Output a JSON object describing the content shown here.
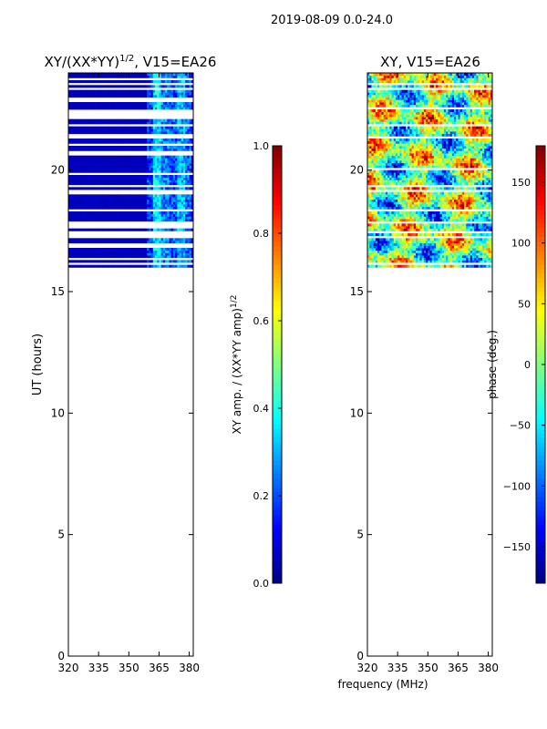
{
  "figure": {
    "suptitle": "2019-08-09 0.0-24.0",
    "shared_xlabel": "frequency (MHz)"
  },
  "colors": {
    "jet": [
      "#00007f",
      "#0000ff",
      "#007fff",
      "#00ffff",
      "#7fff7f",
      "#ffff00",
      "#ff7f00",
      "#ff0000",
      "#7f0000"
    ],
    "white": "#ffffff",
    "axis": "#000000"
  },
  "chart_data": [
    {
      "type": "heatmap",
      "title": "XY/(XX*YY)",
      "title_superscript": "1/2",
      "title_suffix": ", V15=EA26",
      "xlabel": "",
      "ylabel": "UT (hours)",
      "xlim": [
        320,
        382
      ],
      "ylim": [
        0,
        24
      ],
      "xticks": [
        320,
        335,
        350,
        365,
        380
      ],
      "yticks": [
        0,
        5,
        10,
        15,
        20
      ],
      "data_ut_range": [
        16.0,
        24.0
      ],
      "colorbar": {
        "label": "XY amp. / (XX*YY amp)",
        "label_superscript": "1/2",
        "range": [
          0.0,
          1.0
        ],
        "ticks": [
          "0.0",
          "0.2",
          "0.4",
          "0.6",
          "0.8",
          "1.0"
        ],
        "tick_values": [
          0.0,
          0.2,
          0.4,
          0.6,
          0.8,
          1.0
        ]
      },
      "description_values": {
        "background_amplitude": 0.05,
        "band_center_mhz": [
          361,
          364,
          368,
          372,
          376,
          379
        ],
        "band_amplitude": [
          0.18,
          0.35,
          0.25,
          0.2,
          0.3,
          0.22
        ]
      },
      "blank_ut_rows": [
        16.15,
        16.35,
        16.9,
        17.25,
        17.4,
        17.7,
        17.8,
        18.3,
        19.0,
        19.15,
        19.3,
        19.8,
        20.6,
        20.75,
        21.0,
        21.3,
        21.45,
        21.8,
        22.1,
        22.25,
        22.4,
        22.8,
        22.9,
        23.3,
        23.55,
        23.75
      ]
    },
    {
      "type": "heatmap",
      "title": "XY, V15=EA26",
      "xlabel": "frequency (MHz)",
      "ylabel": "",
      "xlim": [
        320,
        382
      ],
      "ylim": [
        0,
        24
      ],
      "xticks": [
        320,
        335,
        350,
        365,
        380
      ],
      "yticks": [
        0,
        5,
        10,
        15,
        20
      ],
      "data_ut_range": [
        16.0,
        24.0
      ],
      "colorbar": {
        "label": "phase (deg.)",
        "range": [
          -180,
          180
        ],
        "ticks": [
          "−150",
          "−100",
          "−50",
          "0",
          "50",
          "100",
          "150"
        ],
        "tick_values": [
          -150,
          -100,
          -50,
          0,
          50,
          100,
          150
        ]
      },
      "blank_ut_rows": [
        16.15,
        17.25,
        17.45,
        17.8,
        18.3,
        19.15,
        19.3,
        20.0,
        21.3,
        21.8,
        22.5,
        23.3,
        23.55
      ]
    }
  ]
}
